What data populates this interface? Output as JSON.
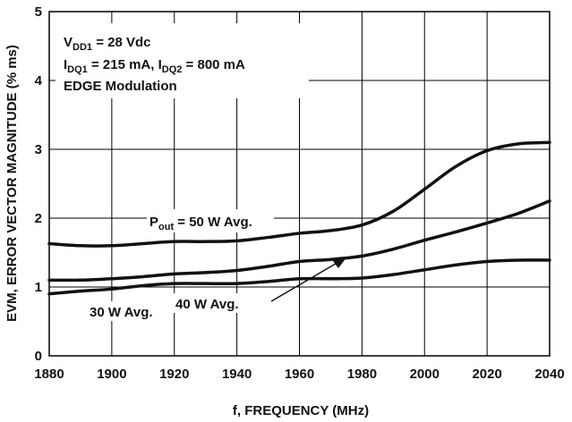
{
  "chart_data": {
    "type": "line",
    "xlabel": "f, FREQUENCY (MHz)",
    "ylabel": "EVM, ERROR VECTOR MAGNITUDE (% ms)",
    "xlim": [
      1880,
      2040
    ],
    "ylim": [
      0,
      5
    ],
    "xticks": [
      "1880",
      "1900",
      "1920",
      "1940",
      "1960",
      "1980",
      "2000",
      "2020",
      "2040"
    ],
    "yticks": [
      "0",
      "1",
      "2",
      "3",
      "4",
      "5"
    ],
    "grid": true,
    "conditions": {
      "line1": {
        "main": "V",
        "sub": "DD1",
        "rest": " = 28 Vdc"
      },
      "line2": {
        "a_main": "I",
        "a_sub": "DQ1",
        "a_rest": " = 215 mA, ",
        "b_main": "I",
        "b_sub": "DQ2",
        "b_rest": " = 800 mA"
      },
      "line3": "EDGE Modulation"
    },
    "series": [
      {
        "name": "Pout = 50 W Avg.",
        "x": [
          1880,
          1890,
          1900,
          1910,
          1920,
          1930,
          1940,
          1950,
          1960,
          1970,
          1980,
          1990,
          2000,
          2010,
          2020,
          2030,
          2040
        ],
        "values": [
          1.63,
          1.6,
          1.6,
          1.63,
          1.66,
          1.66,
          1.67,
          1.72,
          1.78,
          1.82,
          1.9,
          2.1,
          2.42,
          2.75,
          2.98,
          3.08,
          3.1
        ]
      },
      {
        "name": "40 W Avg.",
        "x": [
          1880,
          1890,
          1900,
          1910,
          1920,
          1930,
          1940,
          1950,
          1960,
          1970,
          1980,
          1990,
          2000,
          2010,
          2020,
          2030,
          2040
        ],
        "values": [
          1.1,
          1.1,
          1.12,
          1.15,
          1.19,
          1.21,
          1.24,
          1.3,
          1.37,
          1.4,
          1.45,
          1.55,
          1.68,
          1.8,
          1.93,
          2.07,
          2.25
        ]
      },
      {
        "name": "30 W Avg.",
        "x": [
          1880,
          1890,
          1900,
          1910,
          1920,
          1930,
          1940,
          1950,
          1960,
          1970,
          1980,
          1990,
          2000,
          2010,
          2020,
          2030,
          2040
        ],
        "values": [
          0.9,
          0.94,
          0.97,
          1.02,
          1.05,
          1.05,
          1.05,
          1.08,
          1.12,
          1.12,
          1.13,
          1.18,
          1.25,
          1.32,
          1.37,
          1.39,
          1.39
        ]
      }
    ],
    "labels": {
      "pout_main": "P",
      "pout_sub": "out",
      "pout_rest": " = 50 W Avg.",
      "w40": "40 W Avg.",
      "w30": "30 W Avg."
    }
  }
}
